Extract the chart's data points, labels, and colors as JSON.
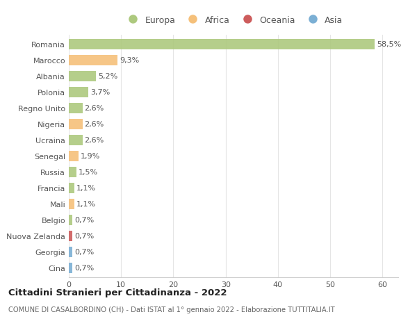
{
  "countries": [
    "Romania",
    "Marocco",
    "Albania",
    "Polonia",
    "Regno Unito",
    "Nigeria",
    "Ucraina",
    "Senegal",
    "Russia",
    "Francia",
    "Mali",
    "Belgio",
    "Nuova Zelanda",
    "Georgia",
    "Cina"
  ],
  "values": [
    58.5,
    9.3,
    5.2,
    3.7,
    2.6,
    2.6,
    2.6,
    1.9,
    1.5,
    1.1,
    1.1,
    0.7,
    0.7,
    0.7,
    0.7
  ],
  "labels": [
    "58,5%",
    "9,3%",
    "5,2%",
    "3,7%",
    "2,6%",
    "2,6%",
    "2,6%",
    "1,9%",
    "1,5%",
    "1,1%",
    "1,1%",
    "0,7%",
    "0,7%",
    "0,7%",
    "0,7%"
  ],
  "colors": [
    "#adc97e",
    "#f5c07a",
    "#adc97e",
    "#adc97e",
    "#adc97e",
    "#f5c07a",
    "#adc97e",
    "#f5c07a",
    "#adc97e",
    "#adc97e",
    "#f5c07a",
    "#adc97e",
    "#cd5c5c",
    "#7bafd4",
    "#7bafd4"
  ],
  "legend_labels": [
    "Europa",
    "Africa",
    "Oceania",
    "Asia"
  ],
  "legend_colors": [
    "#adc97e",
    "#f5c07a",
    "#cd5c5c",
    "#7bafd4"
  ],
  "title": "Cittadini Stranieri per Cittadinanza - 2022",
  "subtitle": "COMUNE DI CASALBORDINO (CH) - Dati ISTAT al 1° gennaio 2022 - Elaborazione TUTTITALIA.IT",
  "xlim": [
    0,
    63
  ],
  "xticks": [
    0,
    10,
    20,
    30,
    40,
    50,
    60
  ],
  "background_color": "#ffffff",
  "grid_color": "#e5e5e5",
  "bar_height": 0.65,
  "label_fontsize": 8,
  "tick_fontsize": 8,
  "legend_fontsize": 9
}
